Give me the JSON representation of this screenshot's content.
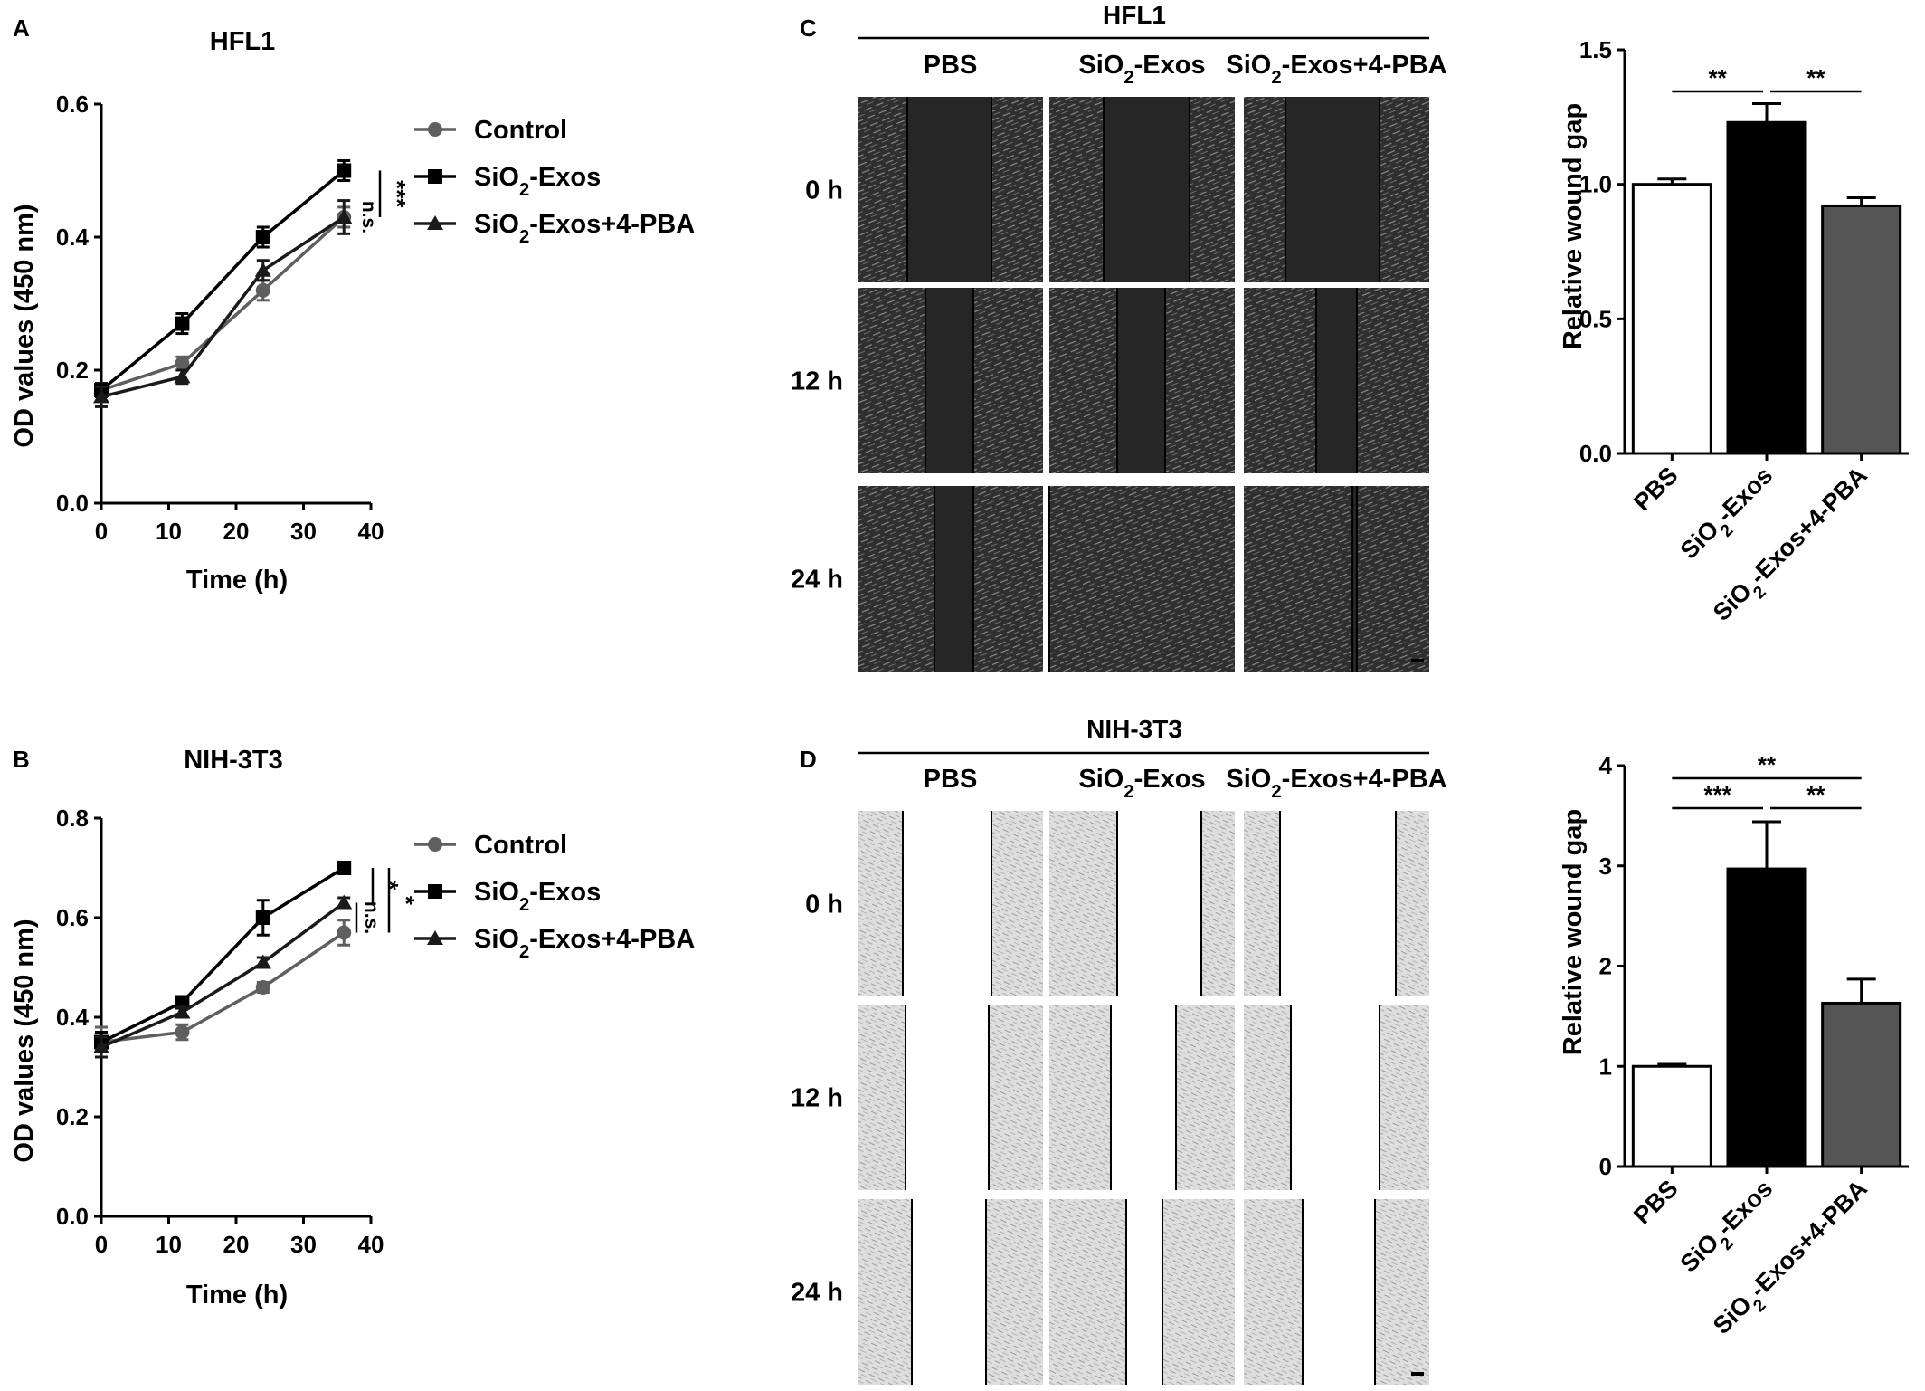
{
  "chart_data": [
    {
      "panel": "A",
      "type": "line",
      "title": "HFL1",
      "xlabel": "Time (h)",
      "ylabel": "OD values (450 nm)",
      "xlim": [
        0,
        40
      ],
      "ylim": [
        0.0,
        0.6
      ],
      "xticks": [
        "0",
        "10",
        "20",
        "30",
        "40"
      ],
      "yticks": [
        "0.0",
        "0.2",
        "0.4",
        "0.6"
      ],
      "x": [
        0,
        12,
        24,
        36
      ],
      "legend_position": "right",
      "series": [
        {
          "name": "Control",
          "marker": "circle",
          "color": "#5f5f5f",
          "values": [
            0.17,
            0.21,
            0.32,
            0.43
          ],
          "errors": [
            0.01,
            0.01,
            0.015,
            0.015
          ]
        },
        {
          "name": "SiO2-Exos",
          "marker": "square",
          "color": "#000000",
          "values": [
            0.17,
            0.27,
            0.4,
            0.5
          ],
          "errors": [
            0.01,
            0.015,
            0.015,
            0.015
          ]
        },
        {
          "name": "SiO2-Exos+4-PBA",
          "marker": "triangle",
          "color": "#1a1a1a",
          "values": [
            0.16,
            0.19,
            0.35,
            0.43
          ],
          "errors": [
            0.015,
            0.01,
            0.015,
            0.025
          ]
        }
      ],
      "significance": [
        {
          "label": "***",
          "between": [
            "SiO2-Exos",
            "Control"
          ]
        },
        {
          "label": "n.s.",
          "between": [
            "Control",
            "SiO2-Exos+4-PBA"
          ]
        }
      ]
    },
    {
      "panel": "B",
      "type": "line",
      "title": "NIH-3T3",
      "xlabel": "Time (h)",
      "ylabel": "OD values (450 nm)",
      "xlim": [
        0,
        40
      ],
      "ylim": [
        0.0,
        0.8
      ],
      "xticks": [
        "0",
        "10",
        "20",
        "30",
        "40"
      ],
      "yticks": [
        "0.0",
        "0.2",
        "0.4",
        "0.6",
        "0.8"
      ],
      "x": [
        0,
        12,
        24,
        36
      ],
      "legend_position": "right",
      "series": [
        {
          "name": "Control",
          "marker": "circle",
          "color": "#5f5f5f",
          "values": [
            0.35,
            0.37,
            0.46,
            0.57
          ],
          "errors": [
            0.03,
            0.015,
            0.01,
            0.025
          ]
        },
        {
          "name": "SiO2-Exos",
          "marker": "square",
          "color": "#000000",
          "values": [
            0.35,
            0.43,
            0.6,
            0.7
          ],
          "errors": [
            0.02,
            0.01,
            0.035,
            0.01
          ]
        },
        {
          "name": "SiO2-Exos+4-PBA",
          "marker": "triangle",
          "color": "#1a1a1a",
          "values": [
            0.34,
            0.41,
            0.51,
            0.63
          ],
          "errors": [
            0.02,
            0.01,
            0.01,
            0.01
          ]
        }
      ],
      "significance": [
        {
          "label": "*",
          "between": [
            "SiO2-Exos",
            "SiO2-Exos+4-PBA"
          ]
        },
        {
          "label": "n.s.",
          "between": [
            "SiO2-Exos+4-PBA",
            "Control"
          ]
        },
        {
          "label": "*",
          "between": [
            "SiO2-Exos",
            "Control"
          ]
        }
      ]
    },
    {
      "panel": "C",
      "type": "bar",
      "cell_line": "HFL1",
      "ylabel": "Relative wound gap",
      "ylim": [
        0.0,
        1.5
      ],
      "yticks": [
        "0.0",
        "0.5",
        "1.0",
        "1.5"
      ],
      "categories": [
        "PBS",
        "SiO2-Exos",
        "SiO2-Exos+4-PBA"
      ],
      "values": [
        1.0,
        1.23,
        0.92
      ],
      "errors": [
        0.02,
        0.07,
        0.03
      ],
      "colors": [
        "#ffffff",
        "#000000",
        "#555555"
      ],
      "significance": [
        {
          "label": "**",
          "between": [
            "PBS",
            "SiO2-Exos"
          ]
        },
        {
          "label": "**",
          "between": [
            "SiO2-Exos",
            "SiO2-Exos+4-PBA"
          ]
        }
      ]
    },
    {
      "panel": "D",
      "type": "bar",
      "cell_line": "NIH-3T3",
      "ylabel": "Relative wound gap",
      "ylim": [
        0,
        4
      ],
      "yticks": [
        "0",
        "1",
        "2",
        "3",
        "4"
      ],
      "categories": [
        "PBS",
        "SiO2-Exos",
        "SiO2-Exos+4-PBA"
      ],
      "values": [
        1.0,
        2.97,
        1.63
      ],
      "errors": [
        0.02,
        0.47,
        0.24
      ],
      "colors": [
        "#ffffff",
        "#000000",
        "#555555"
      ],
      "significance": [
        {
          "label": "**",
          "between": [
            "PBS",
            "SiO2-Exos+4-PBA"
          ]
        },
        {
          "label": "***",
          "between": [
            "PBS",
            "SiO2-Exos"
          ]
        },
        {
          "label": "**",
          "between": [
            "SiO2-Exos",
            "SiO2-Exos+4-PBA"
          ]
        }
      ]
    }
  ],
  "micrographs": {
    "C": {
      "cell_line": "HFL1",
      "columns": [
        "PBS",
        "SiO2-Exos",
        "SiO2-Exos+4-PBA"
      ],
      "rows": [
        "0 h",
        "12 h",
        "24 h"
      ],
      "background": "dark"
    },
    "D": {
      "cell_line": "NIH-3T3",
      "columns": [
        "PBS",
        "SiO2-Exos",
        "SiO2-Exos+4-PBA"
      ],
      "rows": [
        "0 h",
        "12 h",
        "24 h"
      ],
      "background": "light"
    }
  }
}
